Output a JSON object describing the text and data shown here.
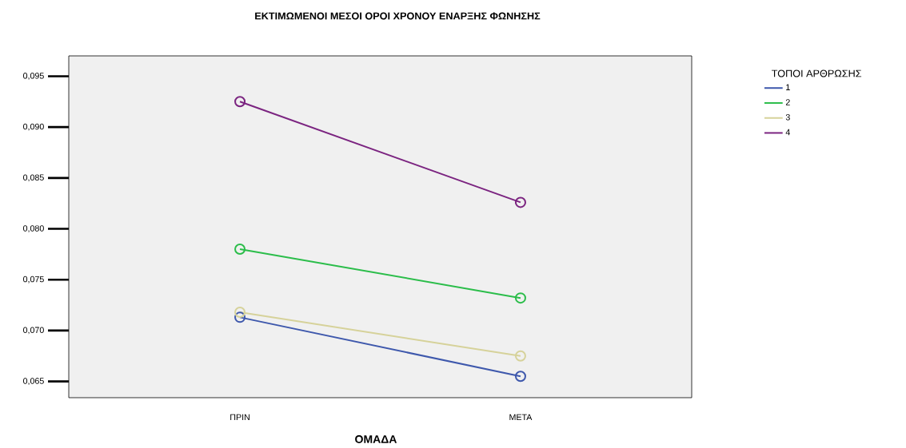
{
  "chart_data": {
    "type": "line",
    "title": "ΕΚΤΙΜΩΜΕΝΟΙ ΜΕΣΟΙ ΟΡΟΙ ΧΡΟΝΟΥ ΕΝΑΡΞΗΣ ΦΩΝΗΣΗΣ",
    "xlabel": "ΟΜΑΔΑ",
    "legend_title": "ΤΟΠΟΙ ΑΡΘΡΩΣΗΣ",
    "categories": [
      "ΠΡΙΝ",
      "ΜΕΤΑ"
    ],
    "series": [
      {
        "name": "1",
        "color": "#3e58ac",
        "values": [
          0.0713,
          0.0655
        ]
      },
      {
        "name": "2",
        "color": "#2bbd4a",
        "values": [
          0.078,
          0.0732
        ]
      },
      {
        "name": "3",
        "color": "#d6d29a",
        "values": [
          0.0718,
          0.0675
        ]
      },
      {
        "name": "4",
        "color": "#7b2480",
        "values": [
          0.0925,
          0.0826
        ]
      }
    ],
    "ylim": [
      0.0634,
      0.097
    ],
    "yticks": [
      {
        "value": 0.065,
        "label": "0,065"
      },
      {
        "value": 0.07,
        "label": "0,070"
      },
      {
        "value": 0.075,
        "label": "0,075"
      },
      {
        "value": 0.08,
        "label": "0,080"
      },
      {
        "value": 0.085,
        "label": "0,085"
      },
      {
        "value": 0.09,
        "label": "0,090"
      },
      {
        "value": 0.095,
        "label": "0,095"
      }
    ],
    "marker": "circle",
    "line_style": "solid",
    "grid": false,
    "legend": "top right"
  }
}
